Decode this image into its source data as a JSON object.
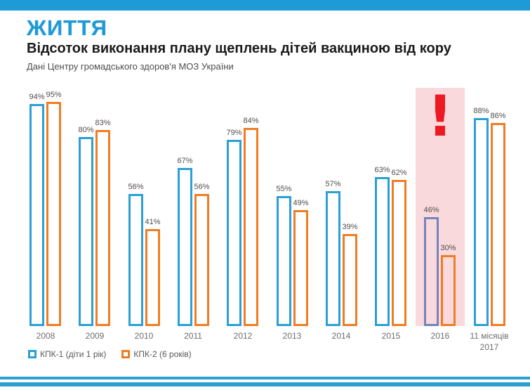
{
  "header": {
    "logo": "ЖИТТЯ",
    "title": "Відсоток виконання плану щеплень дітей вакциною від кору",
    "subtitle": "Дані Центру громадського здоров'я МОЗ України"
  },
  "colors": {
    "topbar_blue": "#1E9BD7",
    "series1_blue": "#2B9FD6",
    "series2_orange": "#F07D23",
    "highlight_band_pink": "#F9D9DB",
    "warn_red": "#EC1B23",
    "muted_blue_2016": "#7383BD",
    "footer_stripe_blue": "#2E9FD4"
  },
  "chart_data": {
    "type": "bar",
    "title": "Відсоток виконання плану щеплень дітей вакциною від кору",
    "xlabel": "",
    "ylabel": "",
    "ylim": [
      0,
      100
    ],
    "grid": false,
    "legend_position": "bottom-left",
    "value_label_suffix": "%",
    "categories": [
      "2008",
      "2009",
      "2010",
      "2011",
      "2012",
      "2013",
      "2014",
      "2015",
      "2016",
      "11 місяців 2017"
    ],
    "series": [
      {
        "name": "КПК-1 (діти 1 рік)",
        "color": "#2B9FD6",
        "values": [
          94,
          80,
          56,
          67,
          79,
          55,
          57,
          63,
          46,
          88
        ]
      },
      {
        "name": "КПК-2 (6 років)",
        "color": "#F07D23",
        "values": [
          95,
          83,
          41,
          56,
          84,
          49,
          39,
          62,
          30,
          86
        ]
      }
    ],
    "highlight": {
      "category": "2016",
      "category_index": 8,
      "band_color": "#F9D9DB",
      "marker": "!",
      "marker_color": "#EC1B23",
      "series1_bar_color": "#7383BD"
    }
  }
}
